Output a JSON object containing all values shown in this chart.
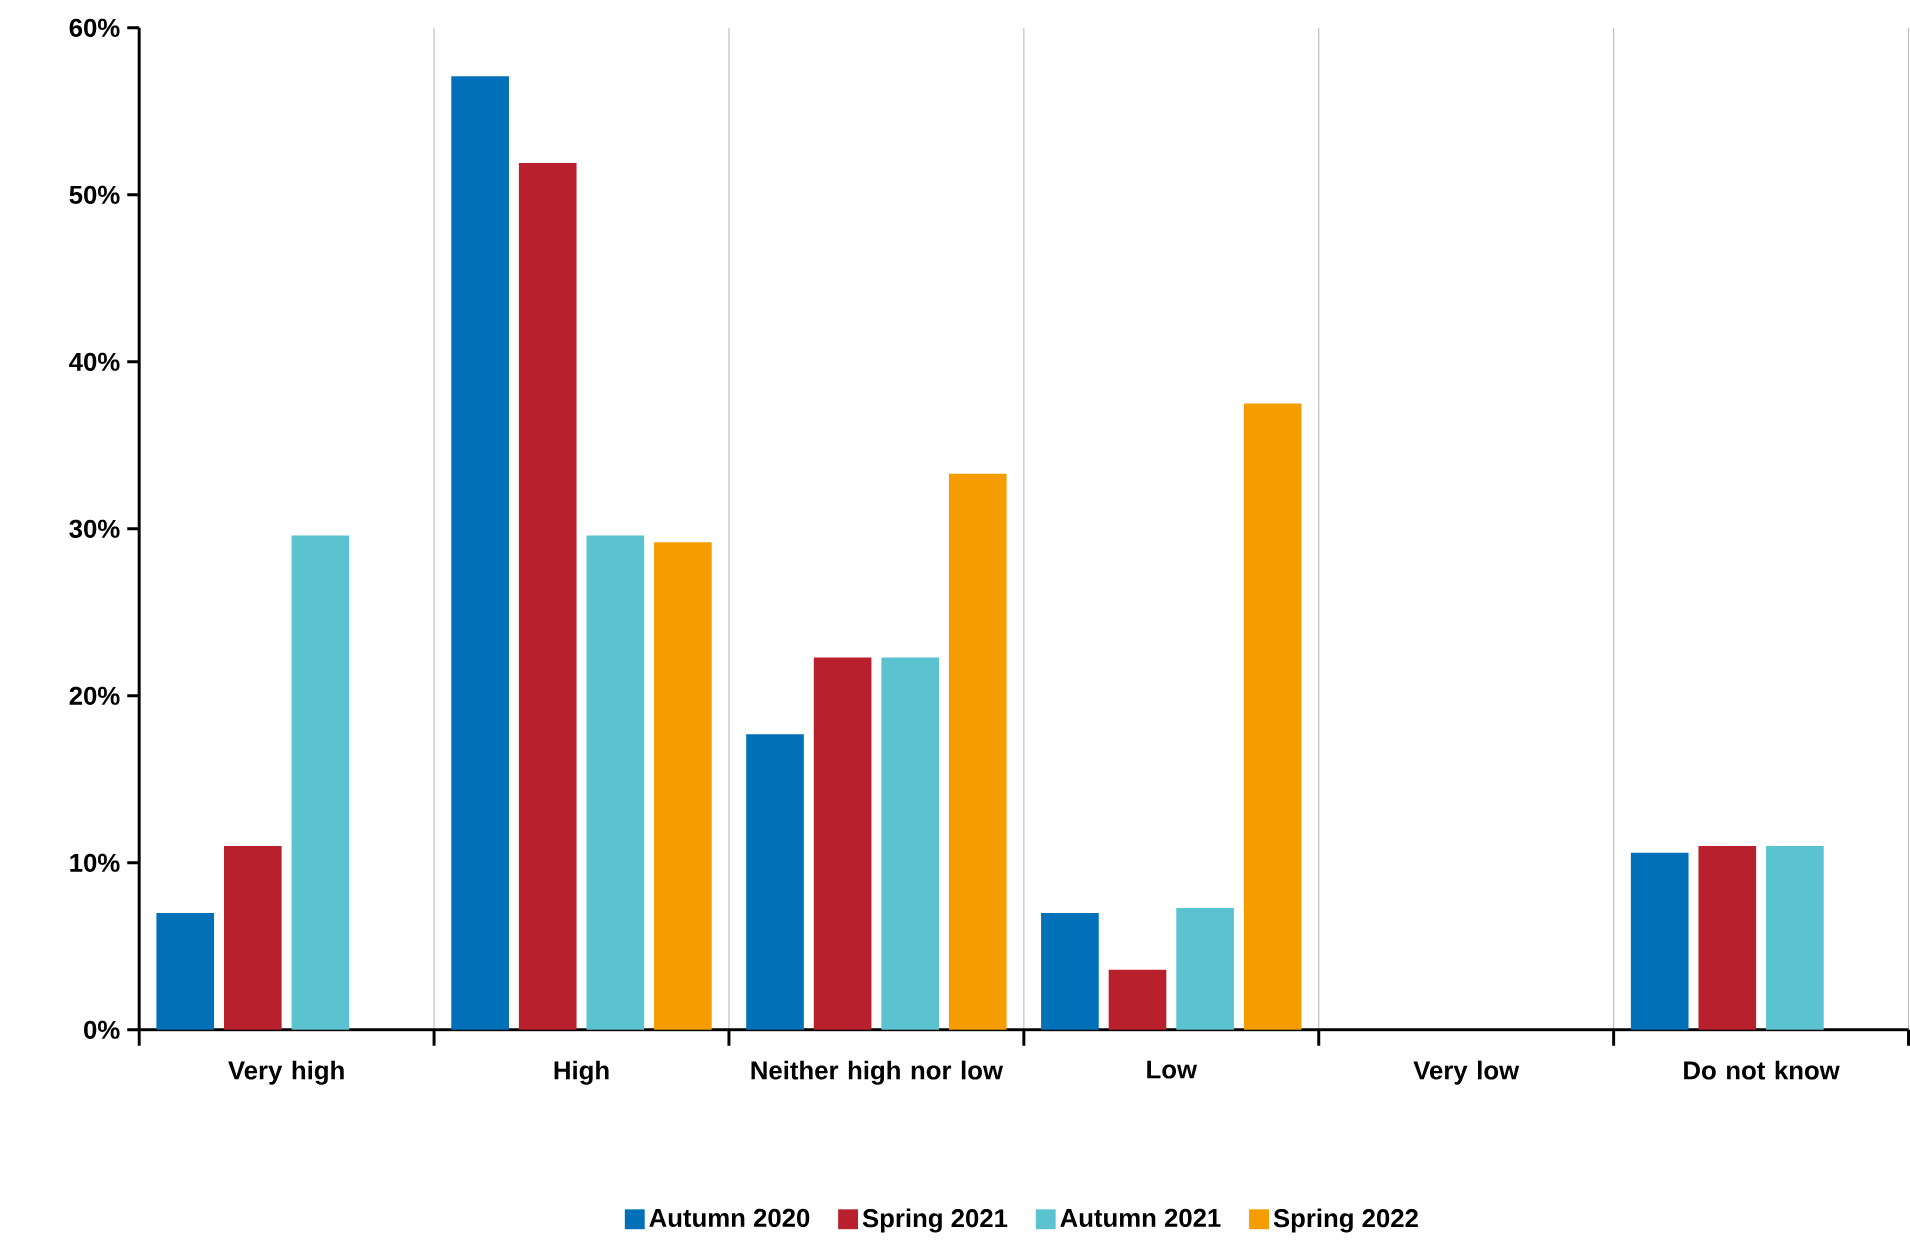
{
  "chart_data": {
    "type": "bar",
    "categories": [
      "Very high",
      "High",
      "Neither high nor low",
      "Low",
      "Very low",
      "Do not know"
    ],
    "series": [
      {
        "name": "Autumn 2020",
        "color": "#0070b8",
        "values": [
          7.0,
          57.1,
          17.7,
          7.0,
          0,
          10.6
        ]
      },
      {
        "name": "Spring 2021",
        "color": "#b8202e",
        "values": [
          11.0,
          51.9,
          22.3,
          3.6,
          0,
          11.0
        ]
      },
      {
        "name": "Autumn 2021",
        "color": "#5bc2d0",
        "values": [
          29.6,
          29.6,
          22.3,
          7.3,
          0,
          11.0
        ]
      },
      {
        "name": "Spring 2022",
        "color": "#f59c00",
        "values": [
          0,
          29.2,
          33.3,
          37.5,
          0,
          0
        ]
      }
    ],
    "ylim": [
      0,
      60
    ],
    "yticks": [
      {
        "value": 0,
        "label": "0%"
      },
      {
        "value": 10,
        "label": "10%"
      },
      {
        "value": 20,
        "label": "20%"
      },
      {
        "value": 30,
        "label": "30%"
      },
      {
        "value": 40,
        "label": "40%"
      },
      {
        "value": 50,
        "label": "50%"
      },
      {
        "value": 60,
        "label": "60%"
      }
    ],
    "grid": "x",
    "legend": "bottom"
  }
}
